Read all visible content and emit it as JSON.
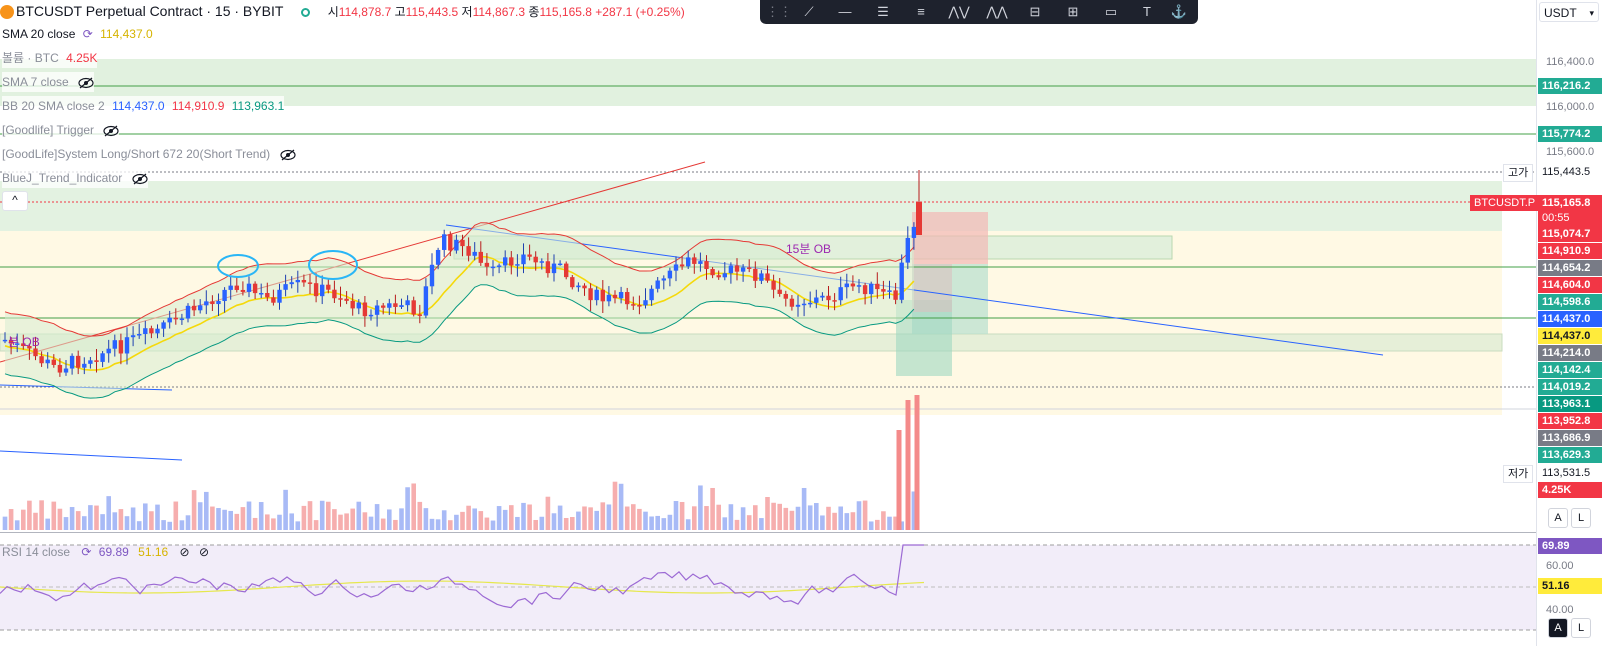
{
  "header": {
    "title": "BTCUSDT Perpetual Contract · 15 · BYBIT",
    "open_label": "시",
    "open": "114,878.7",
    "high_label": "고",
    "high": "115,443.5",
    "low_label": "저",
    "low": "114,867.3",
    "close_label": "종",
    "close": "115,165.8",
    "change": "+287.1 (+0.25%)"
  },
  "indicators": [
    {
      "name": "SMA 20 close",
      "values": [
        "114,437.0"
      ]
    },
    {
      "name": "볼륨 · BTC",
      "values": [
        "4.25K"
      ]
    },
    {
      "name": "SMA 7 close",
      "values": []
    },
    {
      "name": "BB 20 SMA close 2",
      "values": [
        "114,437.0",
        "114,910.9",
        "113,963.1"
      ]
    },
    {
      "name": "[Goodlife] Trigger",
      "values": []
    },
    {
      "name": "[GoodLife]System Long/Short 672 20(Short Trend)",
      "values": []
    },
    {
      "name": "BlueJ_Trend_Indicator",
      "values": []
    }
  ],
  "collapse_label": "^",
  "currency_select": "USDT",
  "ob_labels": {
    "ob15": "15분 OB",
    "ob_left": "분 OB"
  },
  "price_ticks": [
    "116,400.0",
    "116,000.0",
    "115,600.0"
  ],
  "price_tags": [
    {
      "text": "116,216.2",
      "color": "#22ab94"
    },
    {
      "text": "115,774.2",
      "color": "#22ab94"
    },
    {
      "text": "115,443.5",
      "color": "#ffffff"
    },
    {
      "text": "115,165.8",
      "color": "#f23645"
    },
    {
      "text": "00:55",
      "color": "#f23645"
    },
    {
      "text": "115,074.7",
      "color": "#f23645"
    },
    {
      "text": "114,910.9",
      "color": "#f23645"
    },
    {
      "text": "114,654.2",
      "color": "#787b86"
    },
    {
      "text": "114,604.0",
      "color": "#f23645"
    },
    {
      "text": "114,598.6",
      "color": "#22ab94"
    },
    {
      "text": "114,437.0",
      "color": "#2962ff"
    },
    {
      "text": "114,437.0",
      "color": "#ffeb3b"
    },
    {
      "text": "114,214.0",
      "color": "#787b86"
    },
    {
      "text": "114,142.4",
      "color": "#22ab94"
    },
    {
      "text": "114,019.2",
      "color": "#22ab94"
    },
    {
      "text": "113,963.1",
      "color": "#089981"
    },
    {
      "text": "113,952.8",
      "color": "#f23645"
    },
    {
      "text": "113,686.9",
      "color": "#787b86"
    },
    {
      "text": "113,629.3",
      "color": "#22ab94"
    },
    {
      "text": "113,531.5",
      "color": "#ffffff"
    },
    {
      "text": "4.25K",
      "color": "#f23645"
    }
  ],
  "side_labels": {
    "high": "고가",
    "symbol": "BTCUSDT.P",
    "low": "저가"
  },
  "rsi": {
    "name": "RSI 14 close",
    "value": "69.89",
    "ma": "51.16",
    "ticks": [
      "60.00",
      "40.00"
    ],
    "tag_value": "69.89",
    "tag_ma": "51.16"
  },
  "scale_buttons": {
    "a": "A",
    "l": "L"
  },
  "toolbar_icons": [
    "drag-handle-icon",
    "trend-line-icon",
    "horizontal-line-icon",
    "parallel-channel-icon",
    "fib-icon",
    "pattern-icon",
    "zigzag-icon",
    "range-icon",
    "regression-icon",
    "rectangle-icon",
    "text-icon",
    "anchor-icon"
  ]
}
